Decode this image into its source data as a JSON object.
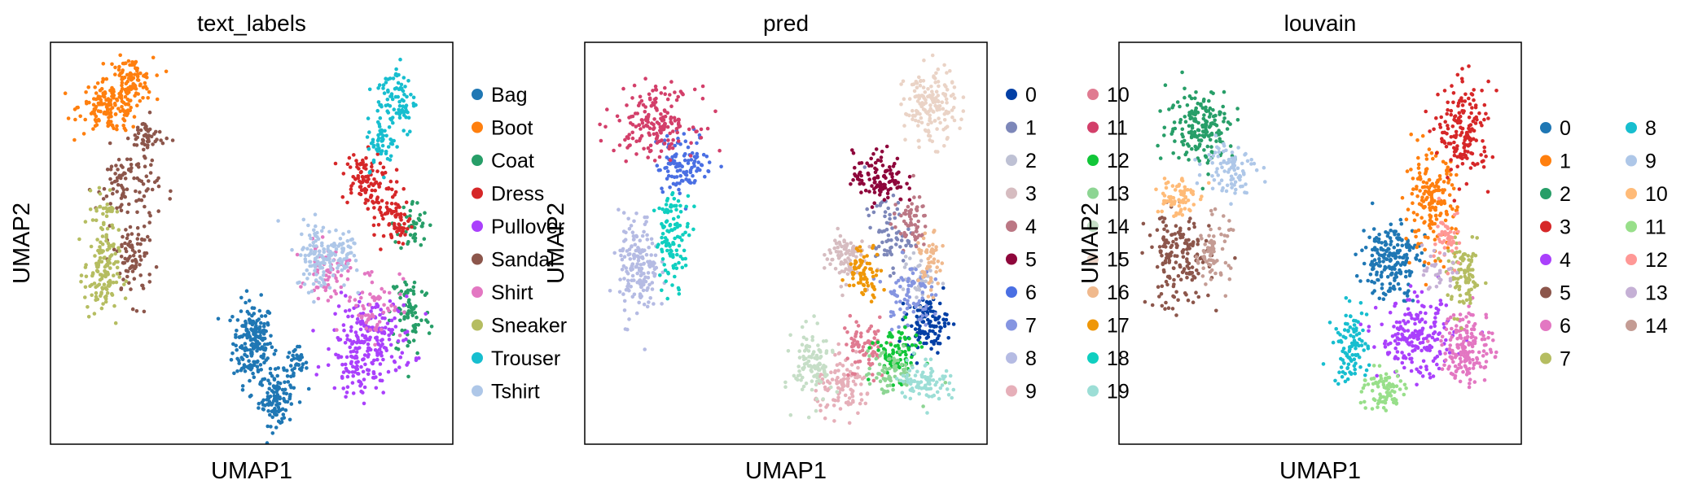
{
  "chart_data": [
    {
      "type": "scatter",
      "title": "text_labels",
      "xlabel": "UMAP1",
      "ylabel": "UMAP2",
      "grid": false,
      "legend_placement": "right",
      "legend_columns": 1,
      "series": [
        {
          "name": "Bag",
          "color": "#1f77b4",
          "clusters": [
            [
              -1.2,
              -1.3,
              0.35,
              0.55,
              200
            ],
            [
              -0.4,
              -2.8,
              0.3,
              0.35,
              110
            ],
            [
              0.3,
              -1.9,
              0.2,
              0.25,
              40
            ]
          ]
        },
        {
          "name": "Boot",
          "color": "#ff7f0e",
          "clusters": [
            [
              -6.2,
              5.0,
              0.55,
              0.35,
              150
            ],
            [
              -5.5,
              5.7,
              0.4,
              0.3,
              90
            ]
          ]
        },
        {
          "name": "Coat",
          "color": "#279e68",
          "clusters": [
            [
              4.3,
              -0.5,
              0.35,
              0.6,
              80
            ],
            [
              4.4,
              1.8,
              0.25,
              0.35,
              40
            ]
          ]
        },
        {
          "name": "Dress",
          "color": "#d62728",
          "clusters": [
            [
              2.6,
              3.1,
              0.35,
              0.35,
              80
            ],
            [
              3.4,
              2.3,
              0.3,
              0.5,
              60
            ],
            [
              4.0,
              1.8,
              0.2,
              0.3,
              30
            ]
          ]
        },
        {
          "name": "Pullover",
          "color": "#aa40fc",
          "clusters": [
            [
              3.0,
              -1.2,
              0.7,
              0.55,
              190
            ],
            [
              2.4,
              -2.0,
              0.35,
              0.3,
              60
            ]
          ]
        },
        {
          "name": "Sandal",
          "color": "#8c564b",
          "clusters": [
            [
              -5.6,
              2.9,
              0.55,
              0.5,
              90
            ],
            [
              -5.4,
              0.9,
              0.35,
              0.55,
              90
            ],
            [
              -4.9,
              4.2,
              0.3,
              0.25,
              50
            ]
          ]
        },
        {
          "name": "Shirt",
          "color": "#e377c2",
          "clusters": [
            [
              1.4,
              0.6,
              0.35,
              0.35,
              60
            ],
            [
              3.0,
              -0.2,
              0.5,
              0.5,
              60
            ]
          ]
        },
        {
          "name": "Sneaker",
          "color": "#b5bd61",
          "clusters": [
            [
              -6.5,
              0.5,
              0.3,
              0.6,
              130
            ],
            [
              -6.4,
              2.3,
              0.2,
              0.25,
              30
            ]
          ]
        },
        {
          "name": "Trouser",
          "color": "#17becf",
          "clusters": [
            [
              3.8,
              5.2,
              0.35,
              0.5,
              90
            ],
            [
              3.3,
              4.0,
              0.25,
              0.35,
              50
            ]
          ]
        },
        {
          "name": "Tshirt",
          "color": "#aec7e8",
          "clusters": [
            [
              1.2,
              1.0,
              0.45,
              0.45,
              130
            ],
            [
              2.0,
              1.2,
              0.25,
              0.3,
              30
            ]
          ]
        }
      ]
    },
    {
      "type": "scatter",
      "title": "pred",
      "xlabel": "UMAP1",
      "ylabel": "UMAP2",
      "grid": false,
      "legend_placement": "right",
      "legend_columns": 2,
      "series": [
        {
          "name": "0",
          "color": "#023fa5",
          "clusters": [
            [
              3.7,
              -0.8,
              0.35,
              0.35,
              110
            ]
          ]
        },
        {
          "name": "1",
          "color": "#7d87b9",
          "clusters": [
            [
              2.3,
              1.6,
              0.4,
              0.5,
              70
            ]
          ]
        },
        {
          "name": "2",
          "color": "#bec1d4",
          "clusters": [
            [
              3.4,
              0.4,
              0.3,
              0.3,
              40
            ]
          ]
        },
        {
          "name": "3",
          "color": "#d6bcc0",
          "clusters": [
            [
              0.8,
              1.0,
              0.35,
              0.35,
              90
            ]
          ]
        },
        {
          "name": "4",
          "color": "#bb7784",
          "clusters": [
            [
              3.1,
              1.9,
              0.3,
              0.35,
              60
            ]
          ]
        },
        {
          "name": "5",
          "color": "#8e063b",
          "clusters": [
            [
              2.0,
              3.1,
              0.45,
              0.35,
              110
            ]
          ]
        },
        {
          "name": "6",
          "color": "#4a6fe3",
          "clusters": [
            [
              -4.8,
              3.5,
              0.5,
              0.4,
              110
            ]
          ]
        },
        {
          "name": "7",
          "color": "#8595e1",
          "clusters": [
            [
              3.0,
              0.0,
              0.4,
              0.45,
              80
            ]
          ]
        },
        {
          "name": "8",
          "color": "#b5bbe3",
          "clusters": [
            [
              -6.4,
              0.7,
              0.35,
              0.7,
              170
            ]
          ]
        },
        {
          "name": "9",
          "color": "#e6afb9",
          "clusters": [
            [
              0.8,
              -2.5,
              0.5,
              0.35,
              110
            ]
          ]
        },
        {
          "name": "10",
          "color": "#e07b91",
          "clusters": [
            [
              1.5,
              -1.5,
              0.4,
              0.45,
              70
            ]
          ]
        },
        {
          "name": "11",
          "color": "#d33f6a",
          "clusters": [
            [
              -5.8,
              4.6,
              0.7,
              0.45,
              180
            ]
          ]
        },
        {
          "name": "12",
          "color": "#11c638",
          "clusters": [
            [
              2.6,
              -1.6,
              0.4,
              0.35,
              90
            ]
          ]
        },
        {
          "name": "13",
          "color": "#8dd593",
          "clusters": [
            [
              2.4,
              -2.1,
              0.45,
              0.3,
              70
            ]
          ]
        },
        {
          "name": "14",
          "color": "#c6dec7",
          "clusters": [
            [
              -0.3,
              -1.9,
              0.35,
              0.5,
              110
            ]
          ]
        },
        {
          "name": "15",
          "color": "#ead3c6",
          "clusters": [
            [
              3.8,
              5.0,
              0.45,
              0.5,
              160
            ]
          ]
        },
        {
          "name": "16",
          "color": "#f0b98d",
          "clusters": [
            [
              3.8,
              0.8,
              0.2,
              0.4,
              50
            ]
          ]
        },
        {
          "name": "17",
          "color": "#ef9708",
          "clusters": [
            [
              1.5,
              0.6,
              0.3,
              0.35,
              70
            ]
          ]
        },
        {
          "name": "18",
          "color": "#0fcfc0",
          "clusters": [
            [
              -5.2,
              1.5,
              0.3,
              0.6,
              110
            ]
          ]
        },
        {
          "name": "19",
          "color": "#9cded6",
          "clusters": [
            [
              3.6,
              -2.3,
              0.45,
              0.3,
              90
            ]
          ]
        }
      ]
    },
    {
      "type": "scatter",
      "title": "louvain",
      "xlabel": "UMAP1",
      "ylabel": "UMAP2",
      "grid": false,
      "legend_placement": "right",
      "legend_columns": 2,
      "series": [
        {
          "name": "0",
          "color": "#1f77b4",
          "clusters": [
            [
              1.2,
              0.9,
              0.5,
              0.5,
              200
            ]
          ]
        },
        {
          "name": "1",
          "color": "#ff7f0e",
          "clusters": [
            [
              2.6,
              2.4,
              0.45,
              0.65,
              180
            ]
          ]
        },
        {
          "name": "2",
          "color": "#279e68",
          "clusters": [
            [
              -5.4,
              4.5,
              0.6,
              0.5,
              180
            ]
          ]
        },
        {
          "name": "3",
          "color": "#d62728",
          "clusters": [
            [
              3.8,
              4.3,
              0.45,
              0.65,
              170
            ]
          ]
        },
        {
          "name": "4",
          "color": "#aa40fc",
          "clusters": [
            [
              2.1,
              -1.2,
              0.65,
              0.5,
              200
            ]
          ]
        },
        {
          "name": "5",
          "color": "#8c564b",
          "clusters": [
            [
              -6.2,
              0.9,
              0.55,
              0.65,
              170
            ]
          ]
        },
        {
          "name": "6",
          "color": "#e377c2",
          "clusters": [
            [
              3.9,
              -1.4,
              0.45,
              0.5,
              170
            ]
          ]
        },
        {
          "name": "7",
          "color": "#b5bd61",
          "clusters": [
            [
              3.8,
              0.4,
              0.3,
              0.45,
              90
            ]
          ]
        },
        {
          "name": "8",
          "color": "#17becf",
          "clusters": [
            [
              -0.2,
              -1.4,
              0.3,
              0.5,
              100
            ]
          ]
        },
        {
          "name": "9",
          "color": "#aec7e8",
          "clusters": [
            [
              -4.4,
              3.4,
              0.45,
              0.35,
              90
            ]
          ]
        },
        {
          "name": "10",
          "color": "#ffbb78",
          "clusters": [
            [
              -6.3,
              2.6,
              0.35,
              0.3,
              70
            ]
          ]
        },
        {
          "name": "11",
          "color": "#98df8a",
          "clusters": [
            [
              0.9,
              -2.6,
              0.4,
              0.3,
              80
            ]
          ]
        },
        {
          "name": "12",
          "color": "#ff9896",
          "clusters": [
            [
              3.3,
              1.5,
              0.25,
              0.35,
              50
            ]
          ]
        },
        {
          "name": "13",
          "color": "#c5b0d5",
          "clusters": [
            [
              2.9,
              0.5,
              0.25,
              0.25,
              30
            ]
          ]
        },
        {
          "name": "14",
          "color": "#c49c94",
          "clusters": [
            [
              -5.0,
              1.2,
              0.3,
              0.45,
              70
            ]
          ]
        }
      ]
    }
  ]
}
